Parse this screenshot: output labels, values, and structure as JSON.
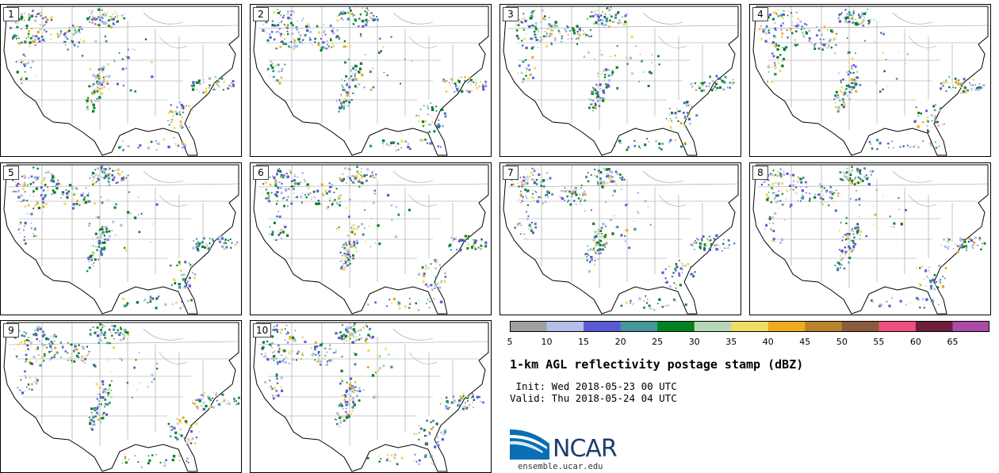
{
  "panels": [
    {
      "label": "1"
    },
    {
      "label": "2"
    },
    {
      "label": "3"
    },
    {
      "label": "4"
    },
    {
      "label": "5"
    },
    {
      "label": "6"
    },
    {
      "label": "7"
    },
    {
      "label": "8"
    },
    {
      "label": "9"
    },
    {
      "label": "10"
    }
  ],
  "colorbar": {
    "colors": [
      "#a0a0a0",
      "#b4bee8",
      "#5a5ad2",
      "#46969b",
      "#00821e",
      "#b4d7b4",
      "#f0dc64",
      "#f0aa1e",
      "#b9822d",
      "#8c5a3c",
      "#f0507d",
      "#6e1e3c",
      "#aa4ba5"
    ],
    "ticks": [
      "5",
      "10",
      "15",
      "20",
      "25",
      "30",
      "35",
      "40",
      "45",
      "50",
      "55",
      "60",
      "65"
    ]
  },
  "title": "1-km AGL reflectivity postage stamp (dBZ)",
  "init": " Init: Wed 2018-05-23 00 UTC",
  "valid": "Valid: Thu 2018-05-24 04 UTC",
  "logo": {
    "text": "NCAR",
    "colors": {
      "swoosh": "#0a6eb4",
      "text": "#1f3d6e"
    }
  },
  "website": "ensemble.ucar.edu"
}
